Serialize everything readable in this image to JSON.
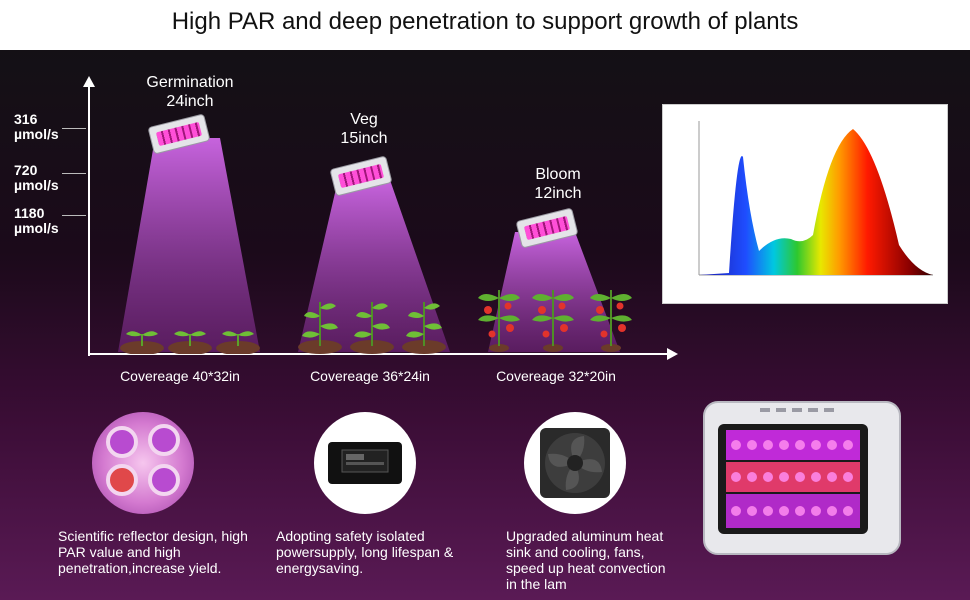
{
  "title": "High PAR and deep penetration to support growth of plants",
  "y_ticks": [
    {
      "label": "316\nµmol/s"
    },
    {
      "label": "720\nµmol/s"
    },
    {
      "label": "1180\nµmol/s"
    }
  ],
  "stages": [
    {
      "name": "Germination",
      "height": "24inch",
      "coverage": "Covereage 40*32in"
    },
    {
      "name": "Veg",
      "height": "15inch",
      "coverage": "Covereage 36*24in"
    },
    {
      "name": "Bloom",
      "height": "12inch",
      "coverage": "Covereage 32*20in"
    }
  ],
  "features": [
    {
      "text": "Scientific reflector design, high PAR value and high penetration,increase yield."
    },
    {
      "text": "Adopting safety isolated powersupply, long lifespan & energysaving."
    },
    {
      "text": "Upgraded aluminum heat sink and cooling, fans, speed up heat convection in the lam"
    }
  ],
  "colors": {
    "beam": "#c04bd6",
    "accent_magenta": "#ff3fd0",
    "background_top": "#121214",
    "background_bottom": "#5a1a55"
  }
}
